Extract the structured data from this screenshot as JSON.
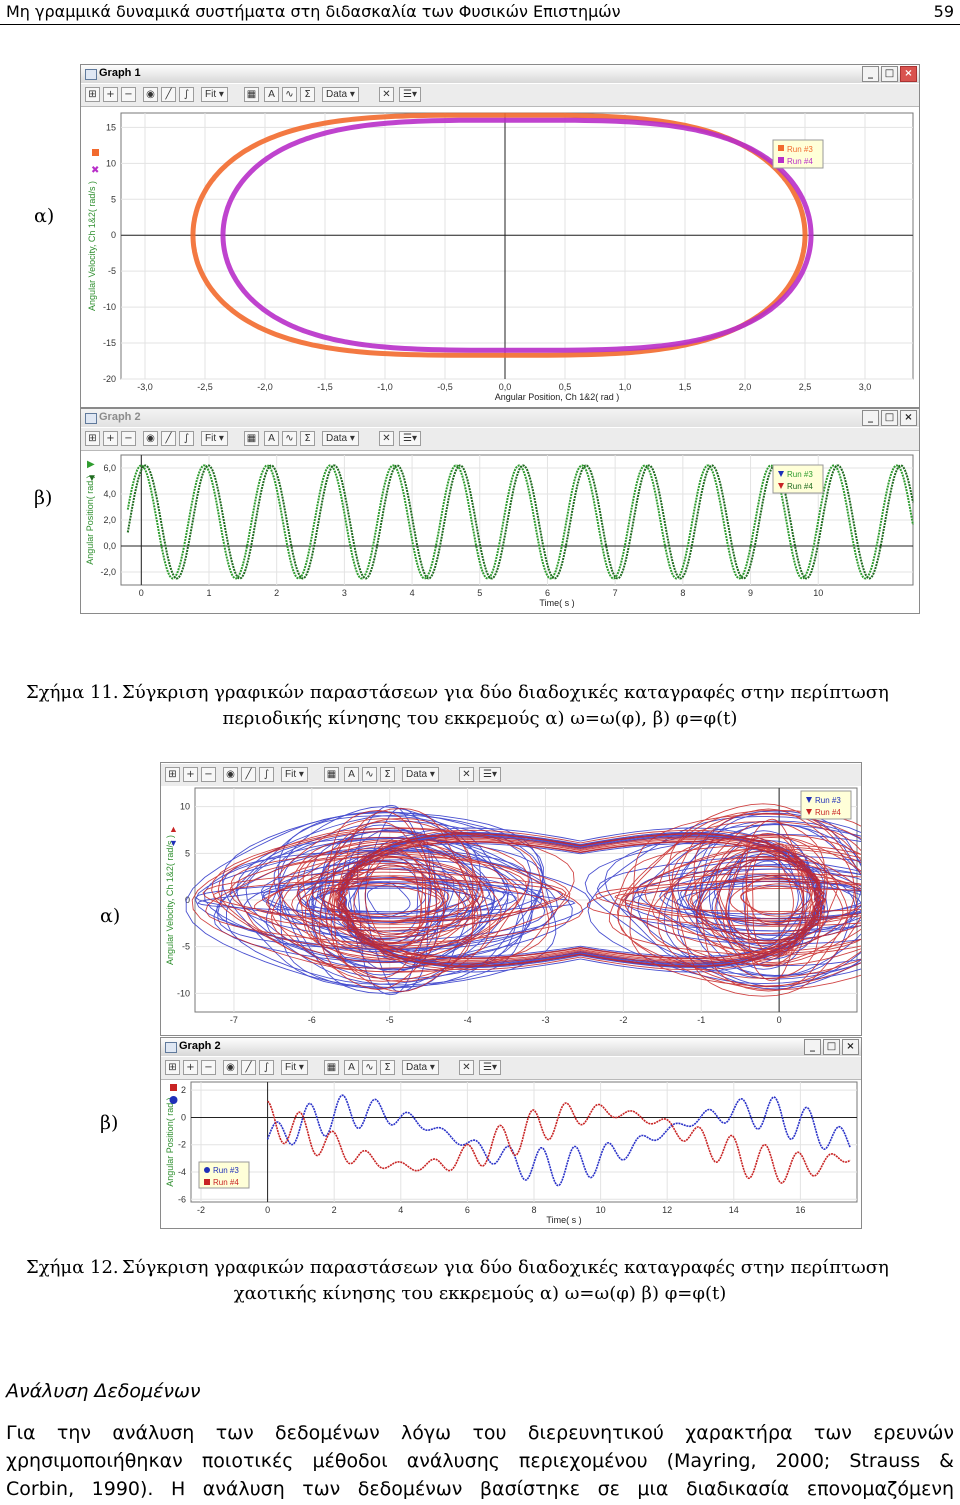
{
  "header": {
    "title": "Μη γραμμικά δυναμικά συστήματα στη διδασκαλία των Φυσικών Επιστημών",
    "page_number": "59"
  },
  "panel_labels": {
    "a": "α)",
    "b": "β)"
  },
  "toolbar_labels": {
    "fit": "Fit",
    "data": "Data"
  },
  "figure11": {
    "graph1": {
      "window_title": "Graph 1",
      "chart_data": {
        "type": "scatter",
        "xlabel": "Angular Position, Ch 1&2( rad )",
        "ylabel": "Angular Velocity, Ch 1&2( rad/s )",
        "xlim": [
          -3.2,
          3.4
        ],
        "ylim": [
          -20,
          17
        ],
        "xticks": [
          "-3,0",
          "-2,5",
          "-2,0",
          "-1,5",
          "-1,0",
          "-0,5",
          "0,0",
          "0,5",
          "1,0",
          "1,5",
          "2,0",
          "2,5",
          "3,0"
        ],
        "yticks": [
          "15",
          "10",
          "5",
          "0",
          "-5",
          "-10",
          "-15",
          "-20"
        ],
        "series": [
          {
            "name": "Run #3",
            "color": "#f26a2e",
            "shape": "closed orbit",
            "center_x": -0.05,
            "half_width_x": 2.55,
            "half_height_y": 16.7
          },
          {
            "name": "Run #4",
            "color": "#b82fc9",
            "shape": "closed orbit",
            "center_x": 0.1,
            "half_width_x": 2.45,
            "half_height_y": 16.0
          }
        ],
        "legend": "top-right"
      }
    },
    "graph2": {
      "window_title": "Graph 2",
      "chart_data": {
        "type": "line",
        "xlabel": "Time( s )",
        "ylabel": "Angular Position( rad )",
        "xlim": [
          -0.3,
          11.4
        ],
        "ylim": [
          -3.0,
          7.0
        ],
        "xticks": [
          "0",
          "1",
          "2",
          "3",
          "4",
          "5",
          "6",
          "7",
          "8",
          "9",
          "10"
        ],
        "yticks": [
          "6,0",
          "4,0",
          "2,0",
          "0,0",
          "-2,0"
        ],
        "series": [
          {
            "name": "Run #3",
            "color": "#2e9c2e",
            "type": "sine",
            "period_s": 0.93,
            "min": -2.5,
            "max": 6.2
          },
          {
            "name": "Run #4",
            "color": "#1f6b1f",
            "type": "sine",
            "period_s": 0.93,
            "min": -2.5,
            "max": 6.2,
            "phase_offset_s": 0.06
          }
        ],
        "legend": "top-right"
      }
    },
    "caption": {
      "label": "Σχήμα 11.",
      "line1": "Σύγκριση γραφικών παραστάσεων για δύο διαδοχικές καταγραφές στην περίπτωση",
      "line2": "περιοδικής κίνησης του εκκρεμούς α) ω=ω(φ), β) φ=φ(t)"
    }
  },
  "figure12": {
    "graph1": {
      "chart_data": {
        "type": "scatter",
        "xlabel": "",
        "ylabel": "Angular Velocity, Ch 1&2( rad/s )",
        "xlim": [
          -7.5,
          1.0
        ],
        "ylim": [
          -12,
          12
        ],
        "xticks": [
          "-7",
          "-6",
          "-5",
          "-4",
          "-3",
          "-2",
          "-1",
          "0"
        ],
        "yticks": [
          "10",
          "5",
          "0",
          "-5",
          "-10"
        ],
        "series": [
          {
            "name": "Run #3",
            "color": "#2a32c8",
            "shape": "double-well chaotic attractor"
          },
          {
            "name": "Run #4",
            "color": "#c82424",
            "shape": "double-well chaotic attractor"
          }
        ],
        "lobe_centers_x": [
          -5.0,
          -0.1
        ],
        "legend": "top-right"
      }
    },
    "graph2": {
      "window_title": "Graph 2",
      "chart_data": {
        "type": "line",
        "xlabel": "Time( s )",
        "ylabel": "Angular Position( rad )",
        "xlim": [
          -2.3,
          17.7
        ],
        "ylim": [
          -6.2,
          2.6
        ],
        "xticks": [
          "-2",
          "0",
          "2",
          "4",
          "6",
          "8",
          "10",
          "12",
          "14",
          "16"
        ],
        "yticks": [
          "2",
          "0",
          "-2",
          "-4",
          "-6"
        ],
        "series": [
          {
            "name": "Run #3",
            "color": "#2a32c8",
            "type": "chaotic oscillation",
            "range": [
              -5.5,
              2.0
            ]
          },
          {
            "name": "Run #4",
            "color": "#c82424",
            "type": "chaotic oscillation",
            "range": [
              -5.5,
              2.0
            ]
          }
        ],
        "legend": "bottom-left"
      }
    },
    "caption": {
      "label": "Σχήμα 12.",
      "line1": "Σύγκριση γραφικών παραστάσεων για δύο διαδοχικές καταγραφές στην περίπτωση",
      "line2": "χαοτικής κίνησης του εκκρεμούς α) ω=ω(φ) β) φ=φ(t)"
    }
  },
  "section": {
    "title": "Ανάλυση Δεδομένων",
    "lines": [
      "Για την ανάλυση των δεδομένων λόγω του διερευνητικού χαρακτήρα των ερευνών",
      "χρησιμοποιήθηκαν ποιοτικές μέθοδοι ανάλυσης περιεχομένου (Mayring, 2000; Strauss &",
      "Corbin, 1990). Η ανάλυση των δεδομένων βασίστηκε σε μια διαδικασία επονομαζόμενη"
    ]
  }
}
